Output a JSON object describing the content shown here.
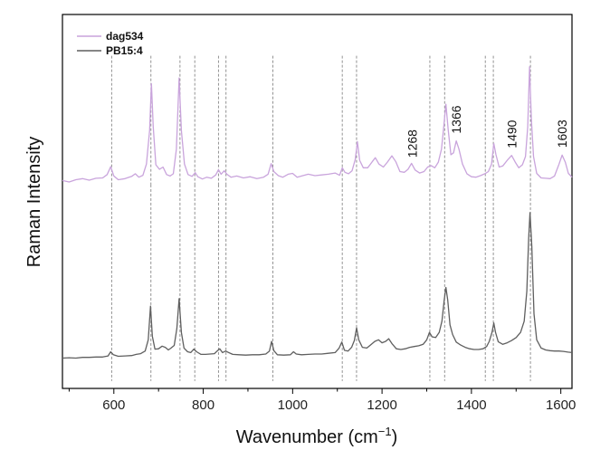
{
  "chart_data": {
    "type": "line",
    "xlabel": "Wavenumber (cm",
    "xlabel_sup": "−1",
    "xlabel_tail": ")",
    "ylabel": "Raman Intensity",
    "xlim": [
      485,
      1625
    ],
    "ylim": [
      0,
      1
    ],
    "x_ticks": [
      600,
      800,
      1000,
      1200,
      1400,
      1600
    ],
    "y_ticks_shown": false,
    "grid": false,
    "legend_position": "top-left",
    "series": [
      {
        "name": "dag534",
        "color": "#c9a4dc",
        "baseline": 0.555,
        "points": [
          [
            485,
            0.556
          ],
          [
            500,
            0.552
          ],
          [
            515,
            0.558
          ],
          [
            530,
            0.561
          ],
          [
            545,
            0.557
          ],
          [
            560,
            0.562
          ],
          [
            575,
            0.563
          ],
          [
            585,
            0.572
          ],
          [
            593,
            0.593
          ],
          [
            600,
            0.568
          ],
          [
            610,
            0.558
          ],
          [
            625,
            0.561
          ],
          [
            640,
            0.567
          ],
          [
            648,
            0.574
          ],
          [
            656,
            0.565
          ],
          [
            665,
            0.57
          ],
          [
            673,
            0.6
          ],
          [
            680,
            0.69
          ],
          [
            684,
            0.815
          ],
          [
            688,
            0.7
          ],
          [
            694,
            0.598
          ],
          [
            702,
            0.586
          ],
          [
            710,
            0.592
          ],
          [
            718,
            0.572
          ],
          [
            726,
            0.568
          ],
          [
            733,
            0.574
          ],
          [
            740,
            0.64
          ],
          [
            746,
            0.83
          ],
          [
            751,
            0.69
          ],
          [
            758,
            0.6
          ],
          [
            766,
            0.572
          ],
          [
            775,
            0.567
          ],
          [
            782,
            0.577
          ],
          [
            788,
            0.566
          ],
          [
            798,
            0.56
          ],
          [
            808,
            0.565
          ],
          [
            818,
            0.562
          ],
          [
            828,
            0.571
          ],
          [
            834,
            0.585
          ],
          [
            840,
            0.573
          ],
          [
            847,
            0.582
          ],
          [
            853,
            0.573
          ],
          [
            862,
            0.565
          ],
          [
            875,
            0.568
          ],
          [
            890,
            0.563
          ],
          [
            905,
            0.566
          ],
          [
            920,
            0.561
          ],
          [
            935,
            0.565
          ],
          [
            945,
            0.573
          ],
          [
            952,
            0.601
          ],
          [
            958,
            0.58
          ],
          [
            968,
            0.569
          ],
          [
            978,
            0.565
          ],
          [
            990,
            0.573
          ],
          [
            1000,
            0.575
          ],
          [
            1010,
            0.565
          ],
          [
            1020,
            0.568
          ],
          [
            1035,
            0.573
          ],
          [
            1050,
            0.569
          ],
          [
            1065,
            0.571
          ],
          [
            1080,
            0.573
          ],
          [
            1095,
            0.576
          ],
          [
            1105,
            0.57
          ],
          [
            1111,
            0.59
          ],
          [
            1117,
            0.578
          ],
          [
            1125,
            0.574
          ],
          [
            1133,
            0.582
          ],
          [
            1140,
            0.612
          ],
          [
            1145,
            0.66
          ],
          [
            1150,
            0.61
          ],
          [
            1158,
            0.59
          ],
          [
            1168,
            0.59
          ],
          [
            1178,
            0.606
          ],
          [
            1185,
            0.617
          ],
          [
            1193,
            0.6
          ],
          [
            1203,
            0.592
          ],
          [
            1212,
            0.605
          ],
          [
            1222,
            0.622
          ],
          [
            1231,
            0.606
          ],
          [
            1240,
            0.58
          ],
          [
            1250,
            0.578
          ],
          [
            1258,
            0.586
          ],
          [
            1266,
            0.602
          ],
          [
            1274,
            0.584
          ],
          [
            1284,
            0.576
          ],
          [
            1294,
            0.58
          ],
          [
            1302,
            0.592
          ],
          [
            1310,
            0.596
          ],
          [
            1318,
            0.59
          ],
          [
            1326,
            0.605
          ],
          [
            1333,
            0.64
          ],
          [
            1338,
            0.7
          ],
          [
            1343,
            0.76
          ],
          [
            1348,
            0.692
          ],
          [
            1354,
            0.625
          ],
          [
            1360,
            0.63
          ],
          [
            1366,
            0.662
          ],
          [
            1372,
            0.64
          ],
          [
            1380,
            0.6
          ],
          [
            1390,
            0.574
          ],
          [
            1400,
            0.566
          ],
          [
            1410,
            0.565
          ],
          [
            1420,
            0.569
          ],
          [
            1430,
            0.574
          ],
          [
            1438,
            0.58
          ],
          [
            1445,
            0.6
          ],
          [
            1450,
            0.655
          ],
          [
            1455,
            0.625
          ],
          [
            1462,
            0.592
          ],
          [
            1470,
            0.595
          ],
          [
            1480,
            0.61
          ],
          [
            1490,
            0.623
          ],
          [
            1498,
            0.605
          ],
          [
            1506,
            0.59
          ],
          [
            1514,
            0.598
          ],
          [
            1521,
            0.62
          ],
          [
            1526,
            0.7
          ],
          [
            1530,
            0.86
          ],
          [
            1534,
            0.72
          ],
          [
            1539,
            0.62
          ],
          [
            1546,
            0.575
          ],
          [
            1556,
            0.563
          ],
          [
            1566,
            0.562
          ],
          [
            1576,
            0.561
          ],
          [
            1586,
            0.568
          ],
          [
            1596,
            0.6
          ],
          [
            1603,
            0.624
          ],
          [
            1610,
            0.605
          ],
          [
            1617,
            0.575
          ],
          [
            1625,
            0.565
          ]
        ]
      },
      {
        "name": "PB15:4",
        "color": "#5f5f5f",
        "baseline": 0.08,
        "points": [
          [
            485,
            0.081
          ],
          [
            500,
            0.082
          ],
          [
            515,
            0.081
          ],
          [
            530,
            0.083
          ],
          [
            545,
            0.083
          ],
          [
            560,
            0.084
          ],
          [
            575,
            0.084
          ],
          [
            587,
            0.087
          ],
          [
            593,
            0.098
          ],
          [
            599,
            0.09
          ],
          [
            610,
            0.086
          ],
          [
            625,
            0.087
          ],
          [
            640,
            0.088
          ],
          [
            650,
            0.091
          ],
          [
            660,
            0.093
          ],
          [
            670,
            0.1
          ],
          [
            677,
            0.13
          ],
          [
            682,
            0.22
          ],
          [
            686,
            0.14
          ],
          [
            692,
            0.105
          ],
          [
            700,
            0.106
          ],
          [
            708,
            0.113
          ],
          [
            715,
            0.11
          ],
          [
            722,
            0.103
          ],
          [
            728,
            0.108
          ],
          [
            735,
            0.115
          ],
          [
            741,
            0.16
          ],
          [
            746,
            0.24
          ],
          [
            751,
            0.15
          ],
          [
            757,
            0.108
          ],
          [
            765,
            0.098
          ],
          [
            772,
            0.096
          ],
          [
            779,
            0.105
          ],
          [
            785,
            0.098
          ],
          [
            795,
            0.091
          ],
          [
            805,
            0.091
          ],
          [
            815,
            0.092
          ],
          [
            825,
            0.093
          ],
          [
            831,
            0.1
          ],
          [
            837,
            0.106
          ],
          [
            843,
            0.096
          ],
          [
            850,
            0.1
          ],
          [
            857,
            0.096
          ],
          [
            866,
            0.091
          ],
          [
            880,
            0.09
          ],
          [
            895,
            0.089
          ],
          [
            910,
            0.09
          ],
          [
            925,
            0.09
          ],
          [
            940,
            0.092
          ],
          [
            948,
            0.1
          ],
          [
            953,
            0.126
          ],
          [
            958,
            0.101
          ],
          [
            966,
            0.09
          ],
          [
            980,
            0.089
          ],
          [
            995,
            0.09
          ],
          [
            1002,
            0.098
          ],
          [
            1008,
            0.092
          ],
          [
            1020,
            0.09
          ],
          [
            1035,
            0.091
          ],
          [
            1050,
            0.092
          ],
          [
            1065,
            0.092
          ],
          [
            1080,
            0.094
          ],
          [
            1095,
            0.096
          ],
          [
            1104,
            0.108
          ],
          [
            1110,
            0.124
          ],
          [
            1116,
            0.102
          ],
          [
            1124,
            0.1
          ],
          [
            1132,
            0.11
          ],
          [
            1138,
            0.128
          ],
          [
            1143,
            0.162
          ],
          [
            1148,
            0.13
          ],
          [
            1156,
            0.11
          ],
          [
            1166,
            0.108
          ],
          [
            1176,
            0.118
          ],
          [
            1184,
            0.126
          ],
          [
            1192,
            0.13
          ],
          [
            1200,
            0.122
          ],
          [
            1208,
            0.126
          ],
          [
            1215,
            0.133
          ],
          [
            1222,
            0.12
          ],
          [
            1232,
            0.106
          ],
          [
            1242,
            0.104
          ],
          [
            1252,
            0.106
          ],
          [
            1262,
            0.11
          ],
          [
            1272,
            0.112
          ],
          [
            1282,
            0.114
          ],
          [
            1292,
            0.118
          ],
          [
            1300,
            0.13
          ],
          [
            1306,
            0.15
          ],
          [
            1312,
            0.138
          ],
          [
            1320,
            0.136
          ],
          [
            1328,
            0.15
          ],
          [
            1334,
            0.18
          ],
          [
            1339,
            0.236
          ],
          [
            1343,
            0.27
          ],
          [
            1347,
            0.236
          ],
          [
            1352,
            0.17
          ],
          [
            1358,
            0.144
          ],
          [
            1366,
            0.124
          ],
          [
            1376,
            0.116
          ],
          [
            1386,
            0.11
          ],
          [
            1396,
            0.106
          ],
          [
            1406,
            0.104
          ],
          [
            1416,
            0.104
          ],
          [
            1426,
            0.106
          ],
          [
            1434,
            0.112
          ],
          [
            1440,
            0.126
          ],
          [
            1446,
            0.15
          ],
          [
            1450,
            0.175
          ],
          [
            1454,
            0.15
          ],
          [
            1460,
            0.125
          ],
          [
            1470,
            0.118
          ],
          [
            1480,
            0.122
          ],
          [
            1490,
            0.128
          ],
          [
            1500,
            0.136
          ],
          [
            1510,
            0.15
          ],
          [
            1518,
            0.18
          ],
          [
            1524,
            0.26
          ],
          [
            1528,
            0.4
          ],
          [
            1531,
            0.47
          ],
          [
            1535,
            0.38
          ],
          [
            1540,
            0.2
          ],
          [
            1546,
            0.13
          ],
          [
            1556,
            0.108
          ],
          [
            1566,
            0.103
          ],
          [
            1576,
            0.101
          ],
          [
            1586,
            0.1
          ],
          [
            1596,
            0.1
          ],
          [
            1606,
            0.099
          ],
          [
            1616,
            0.097
          ],
          [
            1625,
            0.096
          ]
        ]
      }
    ],
    "peak_labels": [
      {
        "text": "1268",
        "x": 1268
      },
      {
        "text": "1366",
        "x": 1366
      },
      {
        "text": "1490",
        "x": 1490
      },
      {
        "text": "1603",
        "x": 1603
      }
    ],
    "reference_lines": [
      {
        "x": 595,
        "series": "both"
      },
      {
        "x": 683,
        "series": "both"
      },
      {
        "x": 748,
        "series": "both"
      },
      {
        "x": 781,
        "series": "both"
      },
      {
        "x": 834,
        "series": "both"
      },
      {
        "x": 851,
        "series": "both"
      },
      {
        "x": 956,
        "series": "both"
      },
      {
        "x": 1111,
        "series": "both"
      },
      {
        "x": 1143,
        "series": "both"
      },
      {
        "x": 1307,
        "series": "both"
      },
      {
        "x": 1340,
        "series": "both"
      },
      {
        "x": 1431,
        "series": "both"
      },
      {
        "x": 1449,
        "series": "both"
      },
      {
        "x": 1532,
        "series": "both"
      }
    ]
  }
}
